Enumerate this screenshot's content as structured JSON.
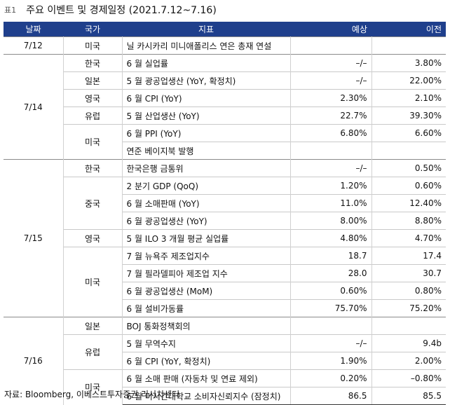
{
  "title": {
    "label": "표1",
    "text": "주요 이벤트 및 경제일정 (2021.7.12~7.16)"
  },
  "headers": {
    "date": "날짜",
    "country": "국가",
    "indicator": "지표",
    "expected": "예상",
    "previous": "이전"
  },
  "rows": [
    {
      "date": "7/12",
      "country": "미국",
      "indicator": "닐 카시카리 미니애폴리스 연은 총재 연설",
      "expected": "",
      "previous": ""
    },
    {
      "date": "7/14",
      "country": "한국",
      "indicator": "6 월 실업률",
      "expected": "–/–",
      "previous": "3.80%"
    },
    {
      "date": "",
      "country": "일본",
      "indicator": "5 월 광공업생산 (YoY, 확정치)",
      "expected": "–/–",
      "previous": "22.00%"
    },
    {
      "date": "",
      "country": "영국",
      "indicator": "6 월 CPI (YoY)",
      "expected": "2.30%",
      "previous": "2.10%"
    },
    {
      "date": "",
      "country": "유럽",
      "indicator": "5 월 산업생산 (YoY)",
      "expected": "22.7%",
      "previous": "39.30%"
    },
    {
      "date": "",
      "country": "미국",
      "indicator": "6 월 PPI (YoY)",
      "expected": "6.80%",
      "previous": "6.60%"
    },
    {
      "date": "",
      "country": "",
      "indicator": "연준 베이지북 발행",
      "expected": "",
      "previous": ""
    },
    {
      "date": "7/15",
      "country": "한국",
      "indicator": "한국은행 금통위",
      "expected": "–/–",
      "previous": "0.50%"
    },
    {
      "date": "",
      "country": "중국",
      "indicator": "2 분기 GDP (QoQ)",
      "expected": "1.20%",
      "previous": "0.60%"
    },
    {
      "date": "",
      "country": "",
      "indicator": "6 월 소매판매 (YoY)",
      "expected": "11.0%",
      "previous": "12.40%"
    },
    {
      "date": "",
      "country": "",
      "indicator": "6 월 광공업생산 (YoY)",
      "expected": "8.00%",
      "previous": "8.80%"
    },
    {
      "date": "",
      "country": "영국",
      "indicator": "5 월 ILO 3 개월 평균 실업률",
      "expected": "4.80%",
      "previous": "4.70%"
    },
    {
      "date": "",
      "country": "미국",
      "indicator": "7 월 뉴욕주 제조업지수",
      "expected": "18.7",
      "previous": "17.4"
    },
    {
      "date": "",
      "country": "",
      "indicator": "7 월 필라델피아 제조업 지수",
      "expected": "28.0",
      "previous": "30.7"
    },
    {
      "date": "",
      "country": "",
      "indicator": "6 월 광공업생산 (MoM)",
      "expected": "0.60%",
      "previous": "0.80%"
    },
    {
      "date": "",
      "country": "",
      "indicator": "6 월 설비가동률",
      "expected": "75.70%",
      "previous": "75.20%"
    },
    {
      "date": "7/16",
      "country": "일본",
      "indicator": "BOJ 통화정책회의",
      "expected": "",
      "previous": ""
    },
    {
      "date": "",
      "country": "유럽",
      "indicator": "5 월 무역수지",
      "expected": "–/–",
      "previous": "9.4b"
    },
    {
      "date": "",
      "country": "",
      "indicator": "6 월 CPI (YoY, 확정치)",
      "expected": "1.90%",
      "previous": "2.00%"
    },
    {
      "date": "",
      "country": "미국",
      "indicator": "6 월 소매 판매 (자동차 및 연료 제외)",
      "expected": "0.20%",
      "previous": "–0.80%"
    },
    {
      "date": "",
      "country": "",
      "indicator": "6 월 미시간대학교 소비자신뢰지수 (잠정치)",
      "expected": "86.5",
      "previous": "85.5"
    }
  ],
  "source": "자료: Bloomberg, 이베스트투자증권 리서치센터",
  "colors": {
    "header_bg": "#1f3f8c",
    "header_text": "#ffffff"
  }
}
